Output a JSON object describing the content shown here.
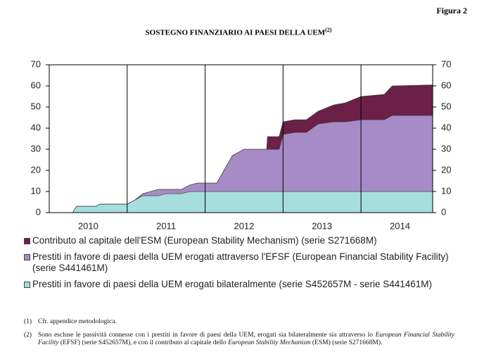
{
  "figure_label": "Figura 2",
  "chart_data": {
    "type": "stacked_area",
    "title": "SOSTEGNO FINANZIARIO AI PAESI DELLA UEM",
    "title_note": "(2)",
    "x": [
      2010.0,
      2010.3,
      2010.35,
      2010.6,
      2010.65,
      2011.0,
      2011.1,
      2011.2,
      2011.4,
      2011.5,
      2011.7,
      2011.8,
      2011.9,
      2012.15,
      2012.35,
      2012.5,
      2012.79,
      2012.8,
      2012.95,
      2013.0,
      2013.15,
      2013.3,
      2013.45,
      2013.65,
      2013.8,
      2014.0,
      2014.3,
      2014.4,
      2014.92
    ],
    "xlim": [
      2010,
      2014.92
    ],
    "xticks": [
      {
        "value": 2010.5,
        "label": "2010"
      },
      {
        "value": 2011.5,
        "label": "2011"
      },
      {
        "value": 2012.5,
        "label": "2012"
      },
      {
        "value": 2013.5,
        "label": "2013"
      },
      {
        "value": 2014.5,
        "label": "2014"
      }
    ],
    "xgrid": [
      2011,
      2012,
      2013,
      2014
    ],
    "ylim": [
      0,
      70
    ],
    "yticks": [
      0,
      10,
      20,
      30,
      40,
      50,
      60,
      70
    ],
    "series": [
      {
        "name": "Prestiti in favore di paesi della UEM erogati bilateralmente (serie S452657M - serie S441461M)",
        "color": "#a6dedd",
        "values": [
          0,
          0,
          3,
          3,
          4,
          4,
          6,
          8,
          8,
          9,
          9,
          10,
          10,
          10,
          10,
          10,
          10,
          10,
          10,
          10,
          10,
          10,
          10,
          10,
          10,
          10,
          10,
          10,
          10
        ]
      },
      {
        "name": "Prestiti in favore di paesi della UEM erogati attraverso l'EFSF (European Financial Stability Facility) (serie S441461M)",
        "color": "#a78bc7",
        "values": [
          0,
          0,
          0,
          0,
          0,
          0,
          0,
          1,
          3,
          2,
          2,
          3,
          4,
          4,
          17,
          20,
          20,
          20,
          20,
          27,
          28,
          28,
          32,
          33,
          33,
          34,
          34,
          36,
          36
        ]
      },
      {
        "name": "Contributo al capitale dell'ESM (European Stability Mechanism) (serie S271668M)",
        "color": "#6b2048",
        "values": [
          0,
          0,
          0,
          0,
          0,
          0,
          0,
          0,
          0,
          0,
          0,
          0,
          0,
          0,
          0,
          0,
          0,
          6,
          6,
          6,
          6,
          6,
          6,
          8,
          9,
          11,
          12,
          14,
          14.5
        ]
      }
    ]
  },
  "notes": [
    {
      "marker": "(1)",
      "parts": [
        {
          "text": "Cfr. appendice metodologica."
        }
      ]
    },
    {
      "marker": "(2)",
      "parts": [
        {
          "text": "Sono escluse le passività connesse con i prestiti in favore di paesi della UEM, erogati sia bilateralmente sia attraverso lo "
        },
        {
          "text": "European Financial Stability Facility",
          "italic": true
        },
        {
          "text": " (EFSF) (serie S452657M), e con il contributo al capitale dello "
        },
        {
          "text": "European Stability Mechanism",
          "italic": true
        },
        {
          "text": " (ESM) (serie S271668M)."
        }
      ]
    }
  ]
}
